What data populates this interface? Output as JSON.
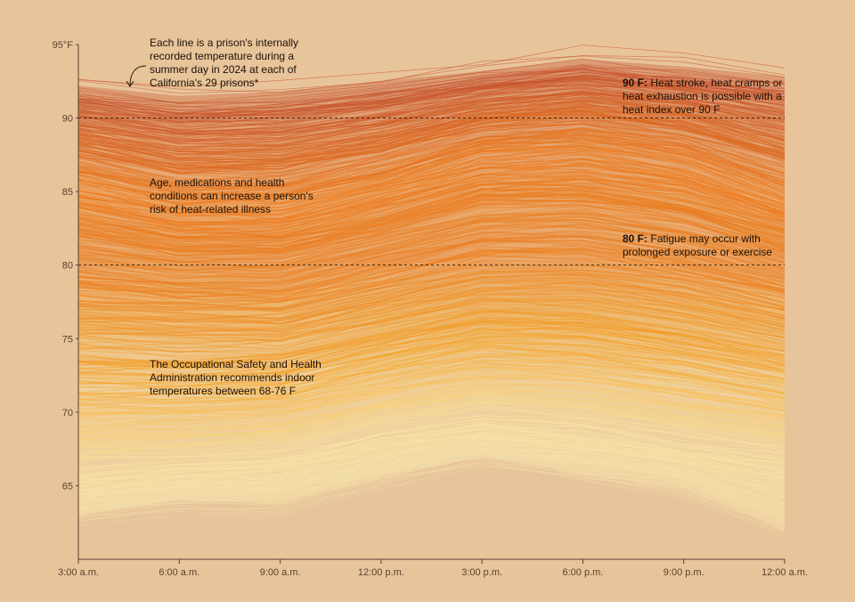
{
  "chart_data": {
    "type": "line",
    "title": "",
    "xlabel": "",
    "ylabel": "",
    "y_unit_label": "95°F",
    "x_ticks": [
      "3:00 a.m.",
      "6:00 a.m.",
      "9:00 a.m.",
      "12:00 p.m.",
      "3:00 p.m.",
      "6:00 p.m.",
      "9:00 p.m.",
      "12:00 a.m."
    ],
    "x_hours": [
      3,
      6,
      9,
      12,
      15,
      18,
      21,
      24
    ],
    "y_ticks": [
      65,
      70,
      75,
      80,
      85,
      90,
      95
    ],
    "ylim": [
      60,
      95
    ],
    "reference_lines": [
      {
        "value": 90,
        "label_bold": "90 F:",
        "label": "Heat stroke, heat cramps or heat exhaustion is possible with a heat index over 90 F"
      },
      {
        "value": 80,
        "label_bold": "80 F:",
        "label": "Fatigue may occur with prolonged exposure or exercise"
      }
    ],
    "line_profile_by_band": {
      "note": "approximate daily temperature envelope (°F) at each x_hours point",
      "coolest": [
        63.0,
        64.0,
        63.8,
        65.5,
        67.0,
        65.8,
        64.8,
        62.0
      ],
      "lower": [
        65.5,
        66.0,
        66.5,
        68.0,
        69.0,
        68.5,
        67.5,
        66.5
      ],
      "median": [
        77.5,
        77.0,
        77.0,
        78.5,
        80.0,
        80.0,
        79.0,
        77.5
      ],
      "upper": [
        86.0,
        84.5,
        84.5,
        86.0,
        88.0,
        88.5,
        87.5,
        85.0
      ],
      "warmest": [
        92.2,
        91.5,
        91.8,
        92.5,
        93.2,
        94.0,
        93.5,
        92.8
      ]
    },
    "series_count": "one line per day per prison, 29 prisons, summer 2024"
  },
  "annotations": {
    "each_line": "Each line is a prison's internally recorded temperature during a summer day in 2024 at each of California's 29 prisons*",
    "age": "Age, medications and health conditions can increase a person's risk of heat-related illness",
    "osha": "The Occupational Safety and Health Administration recommends indoor temperatures between 68-76 F"
  },
  "colors": {
    "background": "#E8C49A",
    "cool": "#FBE8A6",
    "mid": "#F6A21E",
    "warm": "#EC7A1E",
    "hot": "#C4502E",
    "reference_line": "#2a1a0c"
  }
}
